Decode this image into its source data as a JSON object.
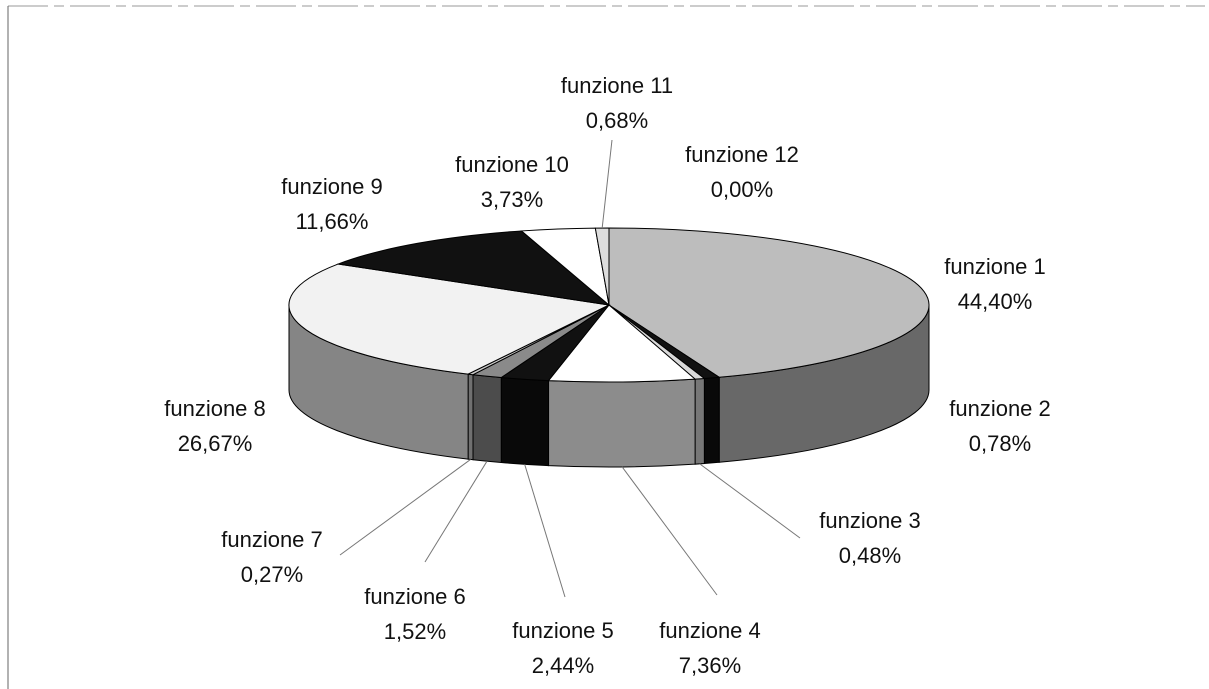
{
  "chart_data": {
    "type": "pie",
    "categories": [
      "funzione 1",
      "funzione 2",
      "funzione 3",
      "funzione 4",
      "funzione 5",
      "funzione 6",
      "funzione 7",
      "funzione 8",
      "funzione 9",
      "funzione 10",
      "funzione 11",
      "funzione 12"
    ],
    "values": [
      44.4,
      0.78,
      0.48,
      7.36,
      2.44,
      1.52,
      0.27,
      26.67,
      11.66,
      3.73,
      0.68,
      0.0
    ],
    "value_labels": [
      "44,40%",
      "0,78%",
      "0,48%",
      "7,36%",
      "2,44%",
      "1,52%",
      "0,27%",
      "26,67%",
      "11,66%",
      "3,73%",
      "0,68%",
      "0,00%"
    ],
    "colors": [
      "#bdbdbd",
      "#111111",
      "#d9d9d9",
      "#ffffff",
      "#111111",
      "#8a8a8a",
      "#cccccc",
      "#f2f2f2",
      "#111111",
      "#ffffff",
      "#dddddd",
      "#ffffff"
    ]
  }
}
